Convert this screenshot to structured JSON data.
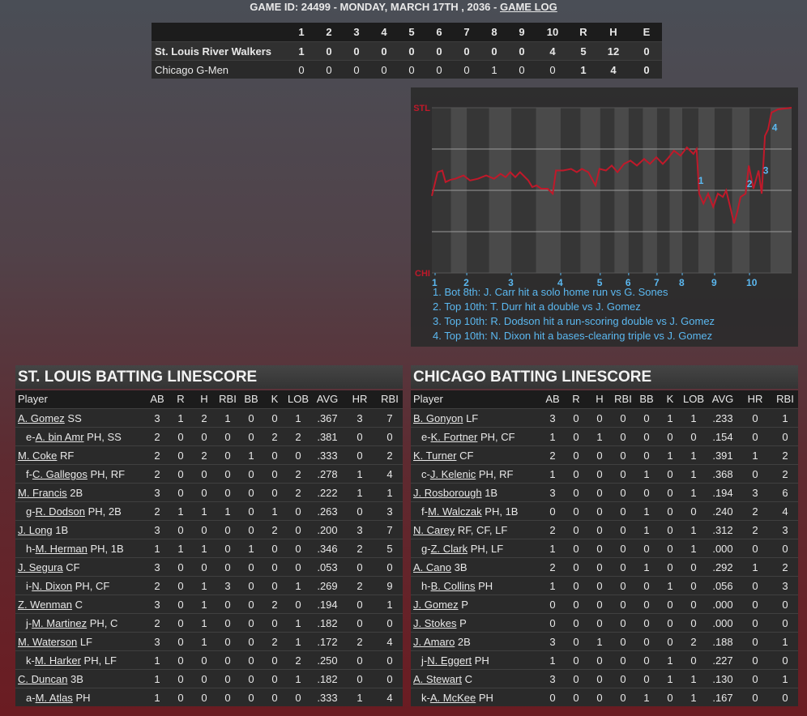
{
  "header": {
    "prefix": "GAME ID: 24499 - MONDAY, MARCH 17TH , 2036 - ",
    "link": "GAME LOG"
  },
  "linescore": {
    "columns": [
      "1",
      "2",
      "3",
      "4",
      "5",
      "6",
      "7",
      "8",
      "9",
      "10",
      "R",
      "H",
      "E"
    ],
    "rows": [
      {
        "team": "St. Louis River Walkers",
        "values": [
          "1",
          "0",
          "0",
          "0",
          "0",
          "0",
          "0",
          "0",
          "0",
          "4",
          "5",
          "12",
          "0"
        ]
      },
      {
        "team": "Chicago G-Men",
        "values": [
          "0",
          "0",
          "0",
          "0",
          "0",
          "0",
          "0",
          "1",
          "0",
          "0",
          "1",
          "4",
          "0"
        ]
      }
    ]
  },
  "chart_data": {
    "type": "line",
    "color": "#c0192a",
    "xlim": [
      0,
      100
    ],
    "ylim": [
      0,
      100
    ],
    "yticks": [
      {
        "value": 100,
        "label": "STL"
      },
      {
        "value": 0,
        "label": "CHI"
      }
    ],
    "gridlines": [
      25,
      50,
      75
    ],
    "xticks": [
      {
        "value": 0.9,
        "label": "1"
      },
      {
        "value": 9.7,
        "label": "2"
      },
      {
        "value": 22.1,
        "label": "3"
      },
      {
        "value": 35.8,
        "label": "4"
      },
      {
        "value": 46.8,
        "label": "5"
      },
      {
        "value": 54.7,
        "label": "6"
      },
      {
        "value": 62.6,
        "label": "7"
      },
      {
        "value": 69.6,
        "label": "8"
      },
      {
        "value": 78.6,
        "label": "9"
      },
      {
        "value": 88.3,
        "label": "10"
      }
    ],
    "x": [
      0,
      1.6,
      2.9,
      3.8,
      5.2,
      6.5,
      8.8,
      10.6,
      12.8,
      15.1,
      17.3,
      19.1,
      20.5,
      21.8,
      23.2,
      24.5,
      26.8,
      27.9,
      29.1,
      30.4,
      32.2,
      33.6,
      34.5,
      36.5,
      38.7,
      40.3,
      41.7,
      43.5,
      45.5,
      46.6,
      48.4,
      50.0,
      51.6,
      53.4,
      55.2,
      57.0,
      59.0,
      60.6,
      62.4,
      64.2,
      65.5,
      67.3,
      69.1,
      70.9,
      72.7,
      73.6,
      74.3,
      75.5,
      76.8,
      78.2,
      79.5,
      80.9,
      81.8,
      82.7,
      84.0,
      84.9,
      85.8,
      87.2,
      88.1,
      89.4,
      90.8,
      91.7,
      92.6,
      93.5,
      94.4,
      96.2,
      98.0,
      100
    ],
    "values": [
      46.6,
      61,
      62,
      55,
      56.4,
      57,
      59,
      56,
      57,
      59,
      57,
      60,
      58,
      61,
      58,
      61,
      56,
      52,
      53,
      51,
      51,
      48,
      62,
      62,
      63,
      61,
      63,
      61,
      53,
      63,
      62,
      65,
      61,
      66,
      68,
      65,
      69,
      66,
      70,
      66,
      69,
      74,
      71,
      76,
      72,
      75,
      48,
      42,
      48,
      40,
      48,
      46,
      50,
      42,
      30,
      37,
      46,
      48,
      65,
      51,
      62,
      48,
      83,
      87,
      97,
      99,
      99.5,
      100
    ],
    "markers": [
      {
        "label": "1",
        "x": 74.8,
        "y": 56
      },
      {
        "label": "2",
        "x": 88.3,
        "y": 54
      },
      {
        "label": "3",
        "x": 92.8,
        "y": 62
      },
      {
        "label": "4",
        "x": 95.3,
        "y": 88
      }
    ],
    "notes": [
      "1. Bot 8th: J. Carr hit a solo home run vs G. Sones",
      "2. Top 10th: T. Durr hit a double vs J. Gomez",
      "3. Top 10th: R. Dodson hit a run-scoring double vs J. Gomez",
      "4. Top 10th: N. Dixon hit a bases-clearing triple vs J. Gomez"
    ]
  },
  "batting": [
    {
      "title": "ST. LOUIS BATTING LINESCORE",
      "columns": [
        "Player",
        "AB",
        "R",
        "H",
        "RBI",
        "BB",
        "K",
        "LOB",
        "AVG",
        "HR",
        "RBI"
      ],
      "rows": [
        {
          "name": "A. Gomez",
          "pos": "SS",
          "stats": [
            "3",
            "1",
            "2",
            "1",
            "0",
            "0",
            "1",
            ".367",
            "3",
            "7"
          ]
        },
        {
          "prefix": "e-",
          "name": "A. bin Amr",
          "pos": "PH, SS",
          "stats": [
            "2",
            "0",
            "0",
            "0",
            "0",
            "2",
            "2",
            ".381",
            "0",
            "0"
          ]
        },
        {
          "name": "M. Coke",
          "pos": "RF",
          "stats": [
            "2",
            "0",
            "2",
            "0",
            "1",
            "0",
            "0",
            ".333",
            "0",
            "2"
          ]
        },
        {
          "prefix": "f-",
          "name": "C. Gallegos",
          "pos": "PH, RF",
          "stats": [
            "2",
            "0",
            "0",
            "0",
            "0",
            "0",
            "2",
            ".278",
            "1",
            "4"
          ]
        },
        {
          "name": "M. Francis",
          "pos": "2B",
          "stats": [
            "3",
            "0",
            "0",
            "0",
            "0",
            "0",
            "2",
            ".222",
            "1",
            "1"
          ]
        },
        {
          "prefix": "g-",
          "name": "R. Dodson",
          "pos": "PH, 2B",
          "stats": [
            "2",
            "1",
            "1",
            "1",
            "0",
            "1",
            "0",
            ".263",
            "0",
            "3"
          ]
        },
        {
          "name": "J. Long",
          "pos": "1B",
          "stats": [
            "3",
            "0",
            "0",
            "0",
            "0",
            "2",
            "0",
            ".200",
            "3",
            "7"
          ]
        },
        {
          "prefix": "h-",
          "name": "M. Herman",
          "pos": "PH, 1B",
          "stats": [
            "1",
            "1",
            "1",
            "0",
            "1",
            "0",
            "0",
            ".346",
            "2",
            "5"
          ]
        },
        {
          "name": "J. Segura",
          "pos": "CF",
          "stats": [
            "3",
            "0",
            "0",
            "0",
            "0",
            "0",
            "0",
            ".053",
            "0",
            "0"
          ]
        },
        {
          "prefix": "i-",
          "name": "N. Dixon",
          "pos": "PH, CF",
          "stats": [
            "2",
            "0",
            "1",
            "3",
            "0",
            "0",
            "1",
            ".269",
            "2",
            "9"
          ]
        },
        {
          "name": "Z. Wenman",
          "pos": "C",
          "stats": [
            "3",
            "0",
            "1",
            "0",
            "0",
            "2",
            "0",
            ".194",
            "0",
            "1"
          ]
        },
        {
          "prefix": "j-",
          "name": "M. Martinez",
          "pos": "PH, C",
          "stats": [
            "2",
            "0",
            "1",
            "0",
            "0",
            "0",
            "1",
            ".182",
            "0",
            "0"
          ]
        },
        {
          "name": "M. Waterson",
          "pos": "LF",
          "stats": [
            "3",
            "0",
            "1",
            "0",
            "0",
            "2",
            "1",
            ".172",
            "2",
            "4"
          ]
        },
        {
          "prefix": "k-",
          "name": "M. Harker",
          "pos": "PH, LF",
          "stats": [
            "1",
            "0",
            "0",
            "0",
            "0",
            "0",
            "2",
            ".250",
            "0",
            "0"
          ]
        },
        {
          "name": "C. Duncan",
          "pos": "3B",
          "stats": [
            "1",
            "0",
            "0",
            "0",
            "0",
            "0",
            "1",
            ".182",
            "0",
            "0"
          ]
        },
        {
          "prefix": "a-",
          "name": "M. Atlas",
          "pos": "PH",
          "stats": [
            "1",
            "0",
            "0",
            "0",
            "0",
            "0",
            "0",
            ".333",
            "1",
            "4"
          ]
        }
      ]
    },
    {
      "title": "CHICAGO BATTING LINESCORE",
      "columns": [
        "Player",
        "AB",
        "R",
        "H",
        "RBI",
        "BB",
        "K",
        "LOB",
        "AVG",
        "HR",
        "RBI"
      ],
      "rows": [
        {
          "name": "B. Gonyon",
          "pos": "LF",
          "stats": [
            "3",
            "0",
            "0",
            "0",
            "0",
            "1",
            "1",
            ".233",
            "0",
            "1"
          ]
        },
        {
          "prefix": "e-",
          "name": "K. Fortner",
          "pos": "PH, CF",
          "stats": [
            "1",
            "0",
            "1",
            "0",
            "0",
            "0",
            "0",
            ".154",
            "0",
            "0"
          ]
        },
        {
          "name": "K. Turner",
          "pos": "CF",
          "stats": [
            "2",
            "0",
            "0",
            "0",
            "0",
            "1",
            "1",
            ".391",
            "1",
            "2"
          ]
        },
        {
          "prefix": "c-",
          "name": "J. Kelenic",
          "pos": "PH, RF",
          "stats": [
            "1",
            "0",
            "0",
            "0",
            "1",
            "0",
            "1",
            ".368",
            "0",
            "2"
          ]
        },
        {
          "name": "J. Rosborough",
          "pos": "1B",
          "stats": [
            "3",
            "0",
            "0",
            "0",
            "0",
            "0",
            "1",
            ".194",
            "3",
            "6"
          ]
        },
        {
          "prefix": "f-",
          "name": "M. Walczak",
          "pos": "PH, 1B",
          "stats": [
            "0",
            "0",
            "0",
            "0",
            "1",
            "0",
            "0",
            ".240",
            "2",
            "4"
          ]
        },
        {
          "name": "N. Carey",
          "pos": "RF, CF, LF",
          "stats": [
            "2",
            "0",
            "0",
            "0",
            "1",
            "0",
            "1",
            ".312",
            "2",
            "3"
          ]
        },
        {
          "prefix": "g-",
          "name": "Z. Clark",
          "pos": "PH, LF",
          "stats": [
            "1",
            "0",
            "0",
            "0",
            "0",
            "0",
            "1",
            ".000",
            "0",
            "0"
          ]
        },
        {
          "name": "A. Cano",
          "pos": "3B",
          "stats": [
            "2",
            "0",
            "0",
            "0",
            "1",
            "0",
            "0",
            ".292",
            "1",
            "2"
          ]
        },
        {
          "prefix": "h-",
          "name": "B. Collins",
          "pos": "PH",
          "stats": [
            "1",
            "0",
            "0",
            "0",
            "0",
            "1",
            "0",
            ".056",
            "0",
            "3"
          ]
        },
        {
          "name": "J. Gomez",
          "pos": "P",
          "stats": [
            "0",
            "0",
            "0",
            "0",
            "0",
            "0",
            "0",
            ".000",
            "0",
            "0"
          ]
        },
        {
          "name": "J. Stokes",
          "pos": "P",
          "stats": [
            "0",
            "0",
            "0",
            "0",
            "0",
            "0",
            "0",
            ".000",
            "0",
            "0"
          ]
        },
        {
          "name": "J. Amaro",
          "pos": "2B",
          "stats": [
            "3",
            "0",
            "1",
            "0",
            "0",
            "0",
            "2",
            ".188",
            "0",
            "1"
          ]
        },
        {
          "prefix": "j-",
          "name": "N. Eggert",
          "pos": "PH",
          "stats": [
            "1",
            "0",
            "0",
            "0",
            "0",
            "1",
            "0",
            ".227",
            "0",
            "0"
          ]
        },
        {
          "name": "A. Stewart",
          "pos": "C",
          "stats": [
            "3",
            "0",
            "0",
            "0",
            "0",
            "1",
            "1",
            ".130",
            "0",
            "1"
          ]
        },
        {
          "prefix": "k-",
          "name": "A. McKee",
          "pos": "PH",
          "stats": [
            "0",
            "0",
            "0",
            "0",
            "1",
            "0",
            "1",
            ".167",
            "0",
            "0"
          ]
        }
      ]
    }
  ]
}
